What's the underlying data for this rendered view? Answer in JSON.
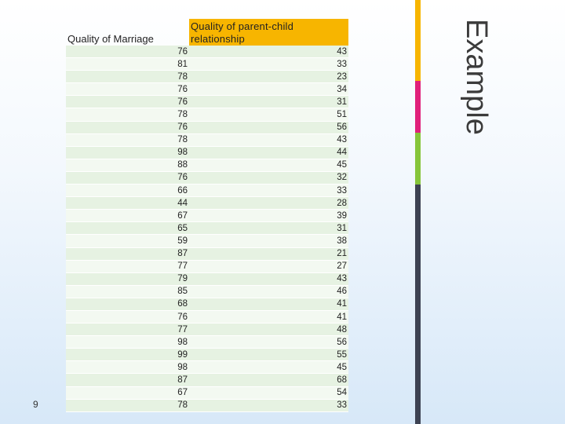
{
  "title": "Example",
  "page_number": "9",
  "table": {
    "headers": [
      "Quality of Marriage",
      "Quality of parent-child relationship"
    ],
    "rows": [
      [
        "76",
        "43"
      ],
      [
        "81",
        "33"
      ],
      [
        "78",
        "23"
      ],
      [
        "76",
        "34"
      ],
      [
        "76",
        "31"
      ],
      [
        "78",
        "51"
      ],
      [
        "76",
        "56"
      ],
      [
        "78",
        "43"
      ],
      [
        "98",
        "44"
      ],
      [
        "88",
        "45"
      ],
      [
        "76",
        "32"
      ],
      [
        "66",
        "33"
      ],
      [
        "44",
        "28"
      ],
      [
        "67",
        "39"
      ],
      [
        "65",
        "31"
      ],
      [
        "59",
        "38"
      ],
      [
        "87",
        "21"
      ],
      [
        "77",
        "27"
      ],
      [
        "79",
        "43"
      ],
      [
        "85",
        "46"
      ],
      [
        "68",
        "41"
      ],
      [
        "76",
        "41"
      ],
      [
        "77",
        "48"
      ],
      [
        "98",
        "56"
      ],
      [
        "99",
        "55"
      ],
      [
        "98",
        "45"
      ],
      [
        "87",
        "68"
      ],
      [
        "67",
        "54"
      ],
      [
        "78",
        "33"
      ]
    ]
  },
  "colors": {
    "accent_yellow": "#f7b500",
    "accent_pink": "#e0207a",
    "accent_green": "#86c53a",
    "bar_dark": "#3d4252",
    "row_band": "#e6f2e2"
  }
}
